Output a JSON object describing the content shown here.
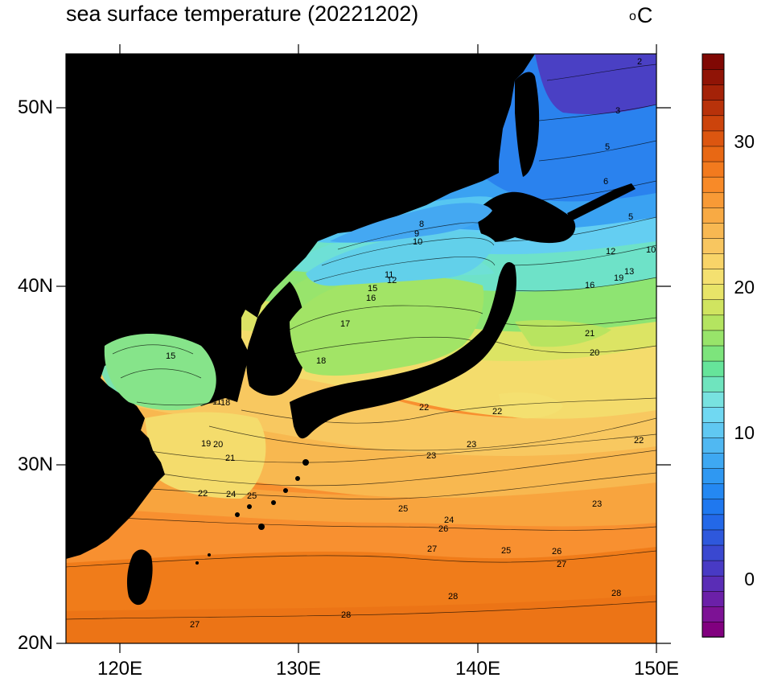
{
  "title": "sea surface temperature (20221202)",
  "unit": "C",
  "unit_prefix": "o",
  "map": {
    "lon_range": [
      117,
      150
    ],
    "lat_range": [
      20,
      53
    ],
    "lon_ticks": [
      120,
      130,
      140,
      150
    ],
    "lat_ticks": [
      20,
      30,
      40,
      50
    ],
    "lon_labels": [
      "120E",
      "130E",
      "140E",
      "150E"
    ],
    "lat_labels": [
      "20N",
      "30N",
      "40N",
      "50N"
    ],
    "land_color": "#000000",
    "contour_labels": [
      "2",
      "3",
      "5",
      "6",
      "5",
      "8",
      "9",
      "10",
      "11",
      "12",
      "15",
      "16",
      "17",
      "18",
      "15",
      "11",
      "18",
      "19",
      "20",
      "21",
      "22",
      "22",
      "22",
      "22",
      "23",
      "23",
      "23",
      "24",
      "25",
      "24",
      "25",
      "26",
      "25",
      "26",
      "27",
      "27",
      "28",
      "28",
      "28",
      "27",
      "12",
      "10",
      "16",
      "19",
      "13",
      "20",
      "21"
    ]
  },
  "colorbar": {
    "min": -4,
    "max": 36,
    "tick_values": [
      0,
      10,
      20,
      30
    ],
    "tick_labels": [
      "0",
      "10",
      "20",
      "30"
    ],
    "colors": [
      "#81007f",
      "#7d1295",
      "#6b20a8",
      "#5a2db6",
      "#483ac4",
      "#3a48d0",
      "#2e58dc",
      "#2368e8",
      "#1f78ef",
      "#2488f2",
      "#2f98f2",
      "#3ea8f2",
      "#50b8f2",
      "#60c8f2",
      "#70d8f2",
      "#78e2e0",
      "#6fe4be",
      "#66e49a",
      "#7de47c",
      "#98e46a",
      "#b4e460",
      "#d0e460",
      "#e8e468",
      "#f4e070",
      "#f8d468",
      "#f8c660",
      "#f8b852",
      "#f8aa44",
      "#f89a36",
      "#f88a28",
      "#f27a1e",
      "#e86814",
      "#dc5610",
      "#cc440c",
      "#b8320a",
      "#a42208",
      "#901406",
      "#800804"
    ]
  }
}
